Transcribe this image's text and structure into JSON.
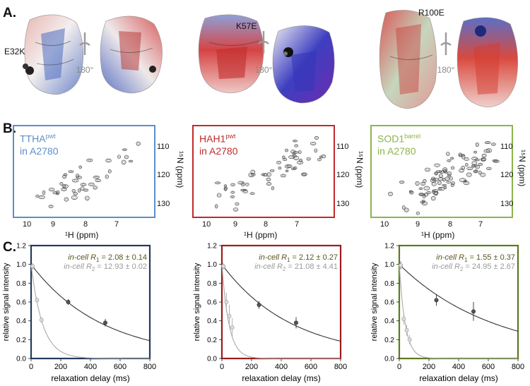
{
  "panels": {
    "A": "A.",
    "B": "B.",
    "C": "C."
  },
  "row_a": {
    "mutations": [
      "E32K",
      "K57E",
      "R100E"
    ],
    "rotation_label": "180°"
  },
  "row_b": {
    "spectra": [
      {
        "name_main": "TTHA",
        "name_sup": "pwt",
        "cell_line": "in A2780",
        "color": "#5b8fc7"
      },
      {
        "name_main": "HAH1",
        "name_sup": "pwt",
        "cell_line": "in A2780",
        "color": "#c02a2a"
      },
      {
        "name_main": "SOD1",
        "name_sup": "barrel",
        "cell_line": "in A2780",
        "color": "#8cb54a"
      }
    ],
    "x_ticks": [
      "10",
      "9",
      "8",
      "7"
    ],
    "y_ticks": [
      "110",
      "120",
      "130"
    ],
    "x_label": "¹H (ppm)",
    "y_label": "¹⁵N (ppm)"
  },
  "chart_data": [
    {
      "type": "scatter",
      "panel": "C1",
      "frame_color": "#243b5a",
      "xlabel": "relaxation delay (ms)",
      "ylabel": "relative signal intensity",
      "xlim": [
        0,
        800
      ],
      "ylim": [
        0,
        1.2
      ],
      "x_ticks": [
        0,
        200,
        400,
        600,
        800
      ],
      "y_ticks": [
        0,
        0.2,
        0.4,
        0.6,
        0.8,
        1.0,
        1.2
      ],
      "annotations": [
        {
          "prefix": "in-cell ",
          "symbol": "R",
          "sub": "1",
          "value": " = 2.08 ± 0.14",
          "color": "#5a5520"
        },
        {
          "prefix": "in-cell ",
          "symbol": "R",
          "sub": "2",
          "value": " = 12.93 ± 0.02",
          "color": "#9a9a9a"
        }
      ],
      "series": [
        {
          "x": [
            10,
            250,
            500
          ],
          "y": [
            0.98,
            0.6,
            0.38
          ],
          "err": [
            0.03,
            0.03,
            0.04
          ],
          "color": "#333333",
          "rate": 2.08
        },
        {
          "x": [
            10,
            40,
            70
          ],
          "y": [
            0.98,
            0.62,
            0.41
          ],
          "err": [
            0.03,
            0.03,
            0.03
          ],
          "color": "#aaaaaa",
          "rate": 12.93
        }
      ]
    },
    {
      "type": "scatter",
      "panel": "C2",
      "frame_color": "#9b1c1c",
      "xlabel": "relaxation delay (ms)",
      "ylabel": "relative signal intensity",
      "xlim": [
        0,
        800
      ],
      "ylim": [
        0,
        1.2
      ],
      "x_ticks": [
        0,
        200,
        400,
        600,
        800
      ],
      "y_ticks": [
        0,
        0.2,
        0.4,
        0.6,
        0.8,
        1.0,
        1.2
      ],
      "annotations": [
        {
          "prefix": "in-cell ",
          "symbol": "R",
          "sub": "1",
          "value": " = 2.12 ± 0.27",
          "color": "#5a5520"
        },
        {
          "prefix": "in-cell ",
          "symbol": "R",
          "sub": "2",
          "value": " = 21.08 ± 4.41",
          "color": "#9a9a9a"
        }
      ],
      "series": [
        {
          "x": [
            10,
            250,
            500
          ],
          "y": [
            0.98,
            0.57,
            0.38
          ],
          "err": [
            0.03,
            0.04,
            0.06
          ],
          "color": "#333333",
          "rate": 2.12
        },
        {
          "x": [
            10,
            30,
            50,
            70
          ],
          "y": [
            0.98,
            0.6,
            0.45,
            0.33
          ],
          "err": [
            0.03,
            0.1,
            0.12,
            0.1
          ],
          "color": "#aaaaaa",
          "rate": 21.08
        }
      ]
    },
    {
      "type": "scatter",
      "panel": "C3",
      "frame_color": "#5b7a1e",
      "xlabel": "relaxation delay (ms)",
      "ylabel": "relative signal intensity",
      "xlim": [
        0,
        800
      ],
      "ylim": [
        0,
        1.2
      ],
      "x_ticks": [
        0,
        200,
        400,
        600,
        800
      ],
      "y_ticks": [
        0,
        0.2,
        0.4,
        0.6,
        0.8,
        1.0,
        1.2
      ],
      "annotations": [
        {
          "prefix": "in-cell ",
          "symbol": "R",
          "sub": "1",
          "value": " = 1.55 ± 0.37",
          "color": "#5a5520"
        },
        {
          "prefix": "in-cell ",
          "symbol": "R",
          "sub": "2",
          "value": " = 24.95 ± 2.67",
          "color": "#9a9a9a"
        }
      ],
      "series": [
        {
          "x": [
            10,
            250,
            500
          ],
          "y": [
            0.99,
            0.62,
            0.5
          ],
          "err": [
            0.04,
            0.06,
            0.1
          ],
          "color": "#333333",
          "rate": 1.55
        },
        {
          "x": [
            10,
            30,
            50,
            70
          ],
          "y": [
            0.99,
            0.42,
            0.3,
            0.2
          ],
          "err": [
            0.03,
            0.06,
            0.06,
            0.05
          ],
          "color": "#aaaaaa",
          "rate": 24.95
        }
      ]
    }
  ]
}
